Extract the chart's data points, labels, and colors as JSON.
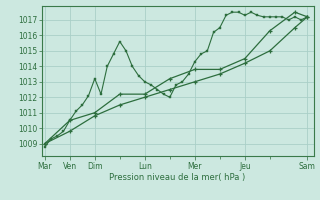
{
  "bg_color": "#cce8e0",
  "grid_color": "#aacfc8",
  "line_color": "#2d6e3e",
  "ylabel": "Pression niveau de la mer( hPa )",
  "ylim": [
    1008.2,
    1017.9
  ],
  "yticks": [
    1009,
    1010,
    1011,
    1012,
    1013,
    1014,
    1015,
    1016,
    1017
  ],
  "series1": {
    "x": [
      0,
      1,
      2,
      3,
      4,
      5,
      6,
      7,
      8,
      9,
      10,
      11,
      12,
      13,
      14,
      15,
      16,
      17,
      18,
      19,
      20,
      21,
      22,
      23,
      24,
      25,
      26,
      27,
      28,
      29,
      30,
      31,
      32,
      33,
      34,
      35,
      36,
      37,
      38,
      39,
      40,
      41,
      42
    ],
    "y": [
      1008.8,
      1009.3,
      1009.5,
      1009.8,
      1010.5,
      1011.1,
      1011.5,
      1012.1,
      1013.2,
      1012.2,
      1014.0,
      1014.8,
      1015.6,
      1015.0,
      1014.0,
      1013.4,
      1013.0,
      1012.8,
      1012.5,
      1012.2,
      1012.0,
      1012.8,
      1013.0,
      1013.5,
      1014.3,
      1014.8,
      1015.0,
      1016.2,
      1016.5,
      1017.3,
      1017.5,
      1017.5,
      1017.3,
      1017.5,
      1017.3,
      1017.2,
      1017.2,
      1017.2,
      1017.2,
      1017.0,
      1017.2,
      1017.0,
      1017.2
    ]
  },
  "series2": {
    "x": [
      0,
      4,
      8,
      12,
      16,
      20,
      24,
      28,
      32,
      36,
      40,
      42
    ],
    "y": [
      1009.0,
      1010.5,
      1011.0,
      1012.2,
      1012.2,
      1013.2,
      1013.8,
      1013.8,
      1014.5,
      1016.3,
      1017.5,
      1017.2
    ]
  },
  "series3": {
    "x": [
      0,
      4,
      8,
      12,
      16,
      20,
      24,
      28,
      32,
      36,
      40,
      42
    ],
    "y": [
      1009.0,
      1009.8,
      1010.8,
      1011.5,
      1012.0,
      1012.5,
      1013.0,
      1013.5,
      1014.2,
      1015.0,
      1016.5,
      1017.2
    ]
  },
  "xtick_positions": [
    0,
    4,
    8,
    12,
    16,
    20,
    24,
    28,
    32,
    36,
    40,
    42
  ],
  "xtick_labels_map": {
    "0": "Mar",
    "4": "Ven",
    "8": "Dim",
    "16": "Lun",
    "24": "Mer",
    "32": "Jeu",
    "42": "Sam"
  },
  "major_xtick_positions": [
    0,
    4,
    8,
    16,
    24,
    32,
    42
  ],
  "major_xtick_labels": [
    "Mar",
    "Ven",
    "Dim",
    "Lun",
    "Mer",
    "Jeu",
    "Sam"
  ]
}
